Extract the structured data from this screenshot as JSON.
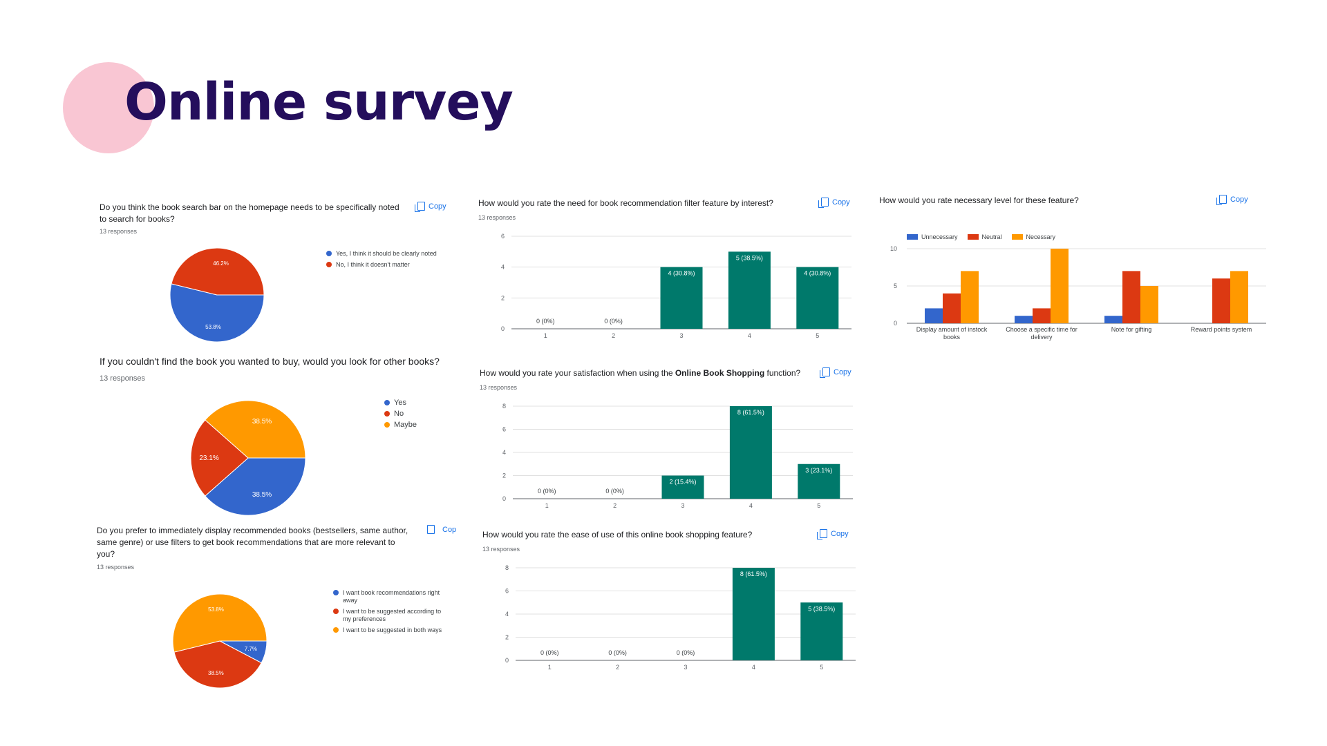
{
  "page": {
    "title": "Online survey"
  },
  "colors": {
    "blue": "#3366cc",
    "red": "#dc3912",
    "orange": "#ff9900",
    "teal": "#00796b",
    "accent": "#1a73e8"
  },
  "copy_label": "Copy",
  "copy_label_clipped": "Cop",
  "chart_data": [
    {
      "id": "q1",
      "type": "pie",
      "title": "Do you think the book search bar on the homepage needs to be specifically noted to search for books?",
      "responses": "13 responses",
      "slices": [
        {
          "label": "Yes, I think it should be clearly noted",
          "value": 53.8,
          "display": "53.8%",
          "color": "#3366cc"
        },
        {
          "label": "No, I think it doesn't matter",
          "value": 46.2,
          "display": "46.2%",
          "color": "#dc3912"
        }
      ]
    },
    {
      "id": "q2",
      "type": "pie",
      "title": "If you couldn't find the book you wanted to buy, would you look for other books?",
      "responses": "13 responses",
      "slices": [
        {
          "label": "Yes",
          "value": 38.5,
          "display": "38.5%",
          "color": "#3366cc"
        },
        {
          "label": "No",
          "value": 23.1,
          "display": "23.1%",
          "color": "#dc3912"
        },
        {
          "label": "Maybe",
          "value": 38.5,
          "display": "38.5%",
          "color": "#ff9900"
        }
      ]
    },
    {
      "id": "q3",
      "type": "pie",
      "title": "Do you prefer to immediately display recommended books (bestsellers, same author, same genre) or use filters to get book recommendations that are more relevant to you?",
      "responses": "13 responses",
      "slices": [
        {
          "label": "I want book recommendations right away",
          "value": 7.7,
          "display": "7.7%",
          "color": "#3366cc"
        },
        {
          "label": "I want to be suggested according to my preferences",
          "value": 38.5,
          "display": "38.5%",
          "color": "#dc3912"
        },
        {
          "label": "I want to be suggested in both ways",
          "value": 53.8,
          "display": "53.8%",
          "color": "#ff9900"
        }
      ]
    },
    {
      "id": "q4",
      "type": "bar",
      "title": "How would you rate the need for book recommendation filter feature by interest?",
      "responses": "13 responses",
      "categories": [
        "1",
        "2",
        "3",
        "4",
        "5"
      ],
      "values": [
        0,
        0,
        4,
        5,
        4
      ],
      "labels": [
        "0 (0%)",
        "0 (0%)",
        "4 (30.8%)",
        "5 (38.5%)",
        "4 (30.8%)"
      ],
      "yticks": [
        0,
        2,
        4,
        6
      ],
      "ylim": [
        0,
        6
      ]
    },
    {
      "id": "q5",
      "type": "bar",
      "title_prefix": "How would you rate your satisfaction when using the ",
      "title_bold": "Online Book Shopping",
      "title_suffix": " function?",
      "responses": "13 responses",
      "categories": [
        "1",
        "2",
        "3",
        "4",
        "5"
      ],
      "values": [
        0,
        0,
        2,
        8,
        3
      ],
      "labels": [
        "0 (0%)",
        "0 (0%)",
        "2 (15.4%)",
        "8 (61.5%)",
        "3 (23.1%)"
      ],
      "yticks": [
        0,
        2,
        4,
        6,
        8
      ],
      "ylim": [
        0,
        8
      ]
    },
    {
      "id": "q6",
      "type": "bar",
      "title": "How would you rate the ease of use of this online book shopping feature?",
      "responses": "13 responses",
      "categories": [
        "1",
        "2",
        "3",
        "4",
        "5"
      ],
      "values": [
        0,
        0,
        0,
        8,
        5
      ],
      "labels": [
        "0 (0%)",
        "0 (0%)",
        "0 (0%)",
        "8 (61.5%)",
        "5 (38.5%)"
      ],
      "yticks": [
        0,
        2,
        4,
        6,
        8
      ],
      "ylim": [
        0,
        8
      ]
    },
    {
      "id": "q7",
      "type": "bar",
      "title": "How would you rate necessary level for these feature?",
      "categories": [
        [
          "Display amount of instock",
          "books"
        ],
        [
          "Choose a specific time for",
          "delivery"
        ],
        [
          "Note for gifting"
        ],
        [
          "Reward points system"
        ]
      ],
      "series": [
        {
          "name": "Unnecessary",
          "color": "#3366cc",
          "values": [
            2,
            1,
            1,
            0
          ]
        },
        {
          "name": "Neutral",
          "color": "#dc3912",
          "values": [
            4,
            2,
            7,
            6
          ]
        },
        {
          "name": "Necessary",
          "color": "#ff9900",
          "values": [
            7,
            10,
            5,
            7
          ]
        }
      ],
      "yticks": [
        0,
        5,
        10
      ],
      "ylim": [
        0,
        10
      ]
    }
  ]
}
